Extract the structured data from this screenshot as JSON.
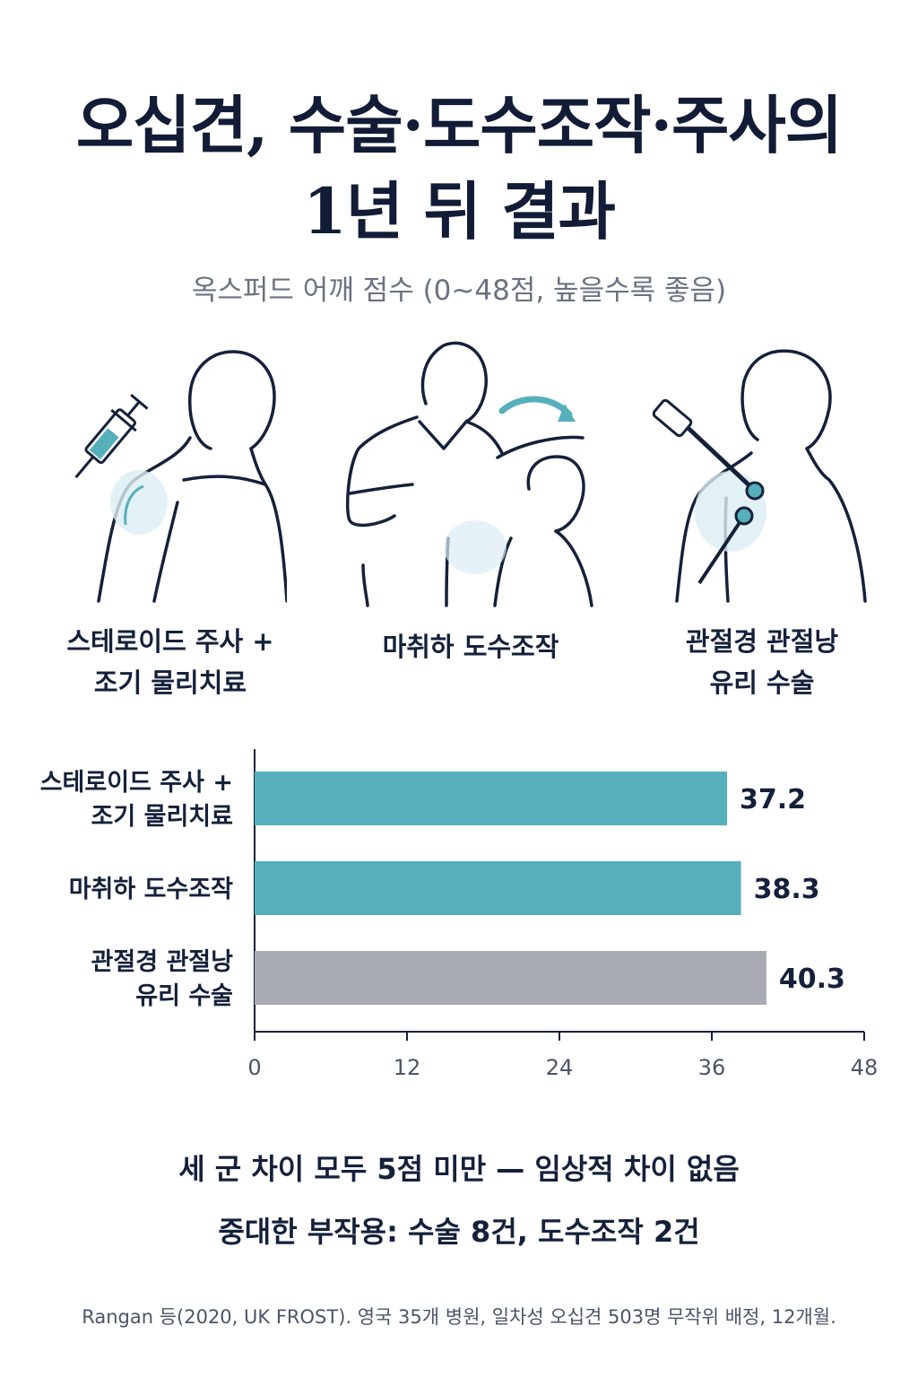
{
  "title_line1": "오십견, 수술·도수조작·주사의",
  "title_line2": "1년 뒤 결과",
  "subtitle": "옥스퍼드 어깨 점수 (0~48점, 높을수록 좋음)",
  "illustrations": [
    {
      "icon": "syringe-shoulder-icon",
      "label_line1": "스테로이드 주사 +",
      "label_line2": "조기 물리치료"
    },
    {
      "icon": "manipulation-icon",
      "label_line1": "마취하 도수조작",
      "label_line2": ""
    },
    {
      "icon": "arthroscope-icon",
      "label_line1": "관절경 관절낭",
      "label_line2": "유리 수술"
    }
  ],
  "chart_data": {
    "type": "bar",
    "orientation": "horizontal",
    "categories": [
      [
        "스테로이드 주사 +",
        "조기 물리치료"
      ],
      [
        "마취하 도수조작"
      ],
      [
        "관절경 관절낭",
        "유리 수술"
      ]
    ],
    "values": [
      37.2,
      38.3,
      40.3
    ],
    "value_labels": [
      "37.2",
      "38.3",
      "40.3"
    ],
    "colors": [
      "#55b0bc",
      "#55b0bc",
      "#a9abb4"
    ],
    "xlim": [
      0,
      48
    ],
    "xticks": [
      0,
      12,
      24,
      36,
      48
    ],
    "grid": false
  },
  "summary_line1": "세 군 차이 모두 5점 미만 — 임상적 차이 없음",
  "summary_line2": "중대한 부작용: 수술 8건, 도수조작 2건",
  "source": "Rangan 등(2020, UK FROST). 영국 35개 병원, 일차성 오십견 503명 무작위 배정, 12개월.",
  "colors": {
    "teal": "#55b0bc",
    "gray": "#a9abb4",
    "navy": "#15213b"
  }
}
